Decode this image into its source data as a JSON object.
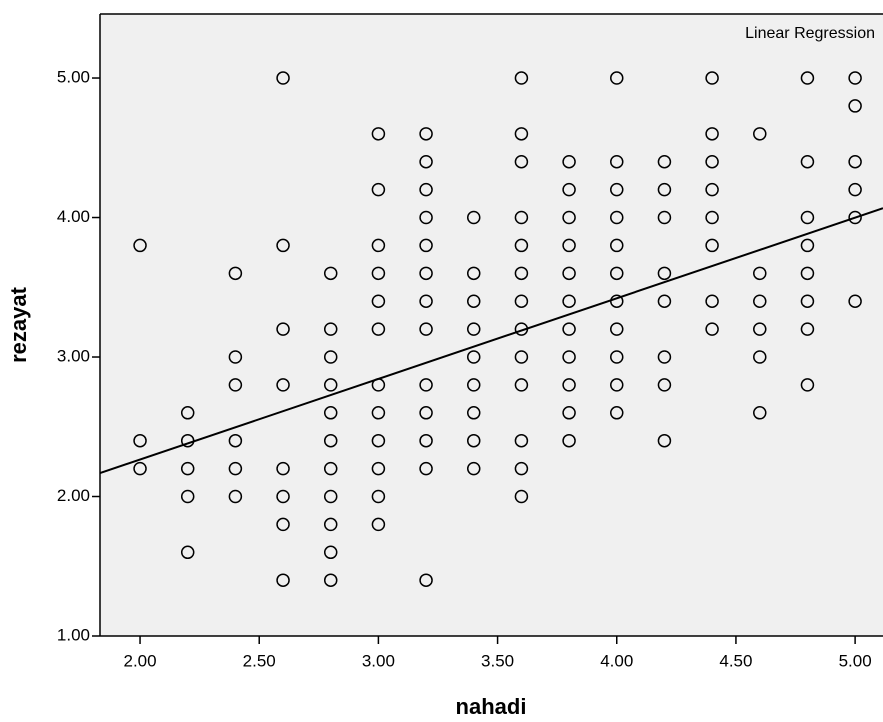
{
  "chart_data": {
    "type": "scatter",
    "x_label": "nahadi",
    "y_label": "rezayat",
    "annotation": "Linear Regression",
    "xlim": [
      1.832,
      5.117
    ],
    "ylim": [
      1.0,
      5.459
    ],
    "xticks": [
      {
        "value": 2,
        "label": "2.00"
      },
      {
        "value": 2.5,
        "label": "2.50"
      },
      {
        "value": 3,
        "label": "3.00"
      },
      {
        "value": 3.5,
        "label": "3.50"
      },
      {
        "value": 4,
        "label": "4.00"
      },
      {
        "value": 4.5,
        "label": "4.50"
      },
      {
        "value": 5,
        "label": "5.00"
      }
    ],
    "yticks": [
      {
        "value": 1,
        "label": "1.00"
      },
      {
        "value": 2,
        "label": "2.00"
      },
      {
        "value": 3,
        "label": "3.00"
      },
      {
        "value": 4,
        "label": "4.00"
      },
      {
        "value": 5,
        "label": "5.00"
      }
    ],
    "grid": false,
    "color": "#000000",
    "background": "#f0f0f0",
    "regression": {
      "intercept": 1.109,
      "slope": 0.578
    },
    "points": [
      [
        2.0,
        3.8
      ],
      [
        2.0,
        2.4
      ],
      [
        2.0,
        2.2
      ],
      [
        2.2,
        2.6
      ],
      [
        2.2,
        2.4
      ],
      [
        2.2,
        2.2
      ],
      [
        2.2,
        2.0
      ],
      [
        2.2,
        1.6
      ],
      [
        2.4,
        3.6
      ],
      [
        2.4,
        3.0
      ],
      [
        2.4,
        2.8
      ],
      [
        2.4,
        2.4
      ],
      [
        2.4,
        2.2
      ],
      [
        2.4,
        2.0
      ],
      [
        2.6,
        5.0
      ],
      [
        2.6,
        3.8
      ],
      [
        2.6,
        3.2
      ],
      [
        2.6,
        2.8
      ],
      [
        2.6,
        2.2
      ],
      [
        2.6,
        2.0
      ],
      [
        2.6,
        1.8
      ],
      [
        2.6,
        1.4
      ],
      [
        2.8,
        3.6
      ],
      [
        2.8,
        3.2
      ],
      [
        2.8,
        3.0
      ],
      [
        2.8,
        2.8
      ],
      [
        2.8,
        2.6
      ],
      [
        2.8,
        2.4
      ],
      [
        2.8,
        2.2
      ],
      [
        2.8,
        2.0
      ],
      [
        2.8,
        1.8
      ],
      [
        2.8,
        1.6
      ],
      [
        2.8,
        1.4
      ],
      [
        3.0,
        4.6
      ],
      [
        3.0,
        4.2
      ],
      [
        3.0,
        3.8
      ],
      [
        3.0,
        3.6
      ],
      [
        3.0,
        3.4
      ],
      [
        3.0,
        3.2
      ],
      [
        3.0,
        2.8
      ],
      [
        3.0,
        2.6
      ],
      [
        3.0,
        2.4
      ],
      [
        3.0,
        2.2
      ],
      [
        3.0,
        2.0
      ],
      [
        3.0,
        1.8
      ],
      [
        3.2,
        4.6
      ],
      [
        3.2,
        4.4
      ],
      [
        3.2,
        4.2
      ],
      [
        3.2,
        4.0
      ],
      [
        3.2,
        3.8
      ],
      [
        3.2,
        3.6
      ],
      [
        3.2,
        3.4
      ],
      [
        3.2,
        3.2
      ],
      [
        3.2,
        2.8
      ],
      [
        3.2,
        2.6
      ],
      [
        3.2,
        2.4
      ],
      [
        3.2,
        2.2
      ],
      [
        3.2,
        1.4
      ],
      [
        3.4,
        4.0
      ],
      [
        3.4,
        3.6
      ],
      [
        3.4,
        3.4
      ],
      [
        3.4,
        3.2
      ],
      [
        3.4,
        3.0
      ],
      [
        3.4,
        2.8
      ],
      [
        3.4,
        2.6
      ],
      [
        3.4,
        2.4
      ],
      [
        3.4,
        2.2
      ],
      [
        3.6,
        5.0
      ],
      [
        3.6,
        4.6
      ],
      [
        3.6,
        4.4
      ],
      [
        3.6,
        4.0
      ],
      [
        3.6,
        3.8
      ],
      [
        3.6,
        3.6
      ],
      [
        3.6,
        3.4
      ],
      [
        3.6,
        3.2
      ],
      [
        3.6,
        3.0
      ],
      [
        3.6,
        2.8
      ],
      [
        3.6,
        2.4
      ],
      [
        3.6,
        2.2
      ],
      [
        3.6,
        2.0
      ],
      [
        3.8,
        4.4
      ],
      [
        3.8,
        4.2
      ],
      [
        3.8,
        4.0
      ],
      [
        3.8,
        3.8
      ],
      [
        3.8,
        3.6
      ],
      [
        3.8,
        3.4
      ],
      [
        3.8,
        3.2
      ],
      [
        3.8,
        3.0
      ],
      [
        3.8,
        2.8
      ],
      [
        3.8,
        2.6
      ],
      [
        3.8,
        2.4
      ],
      [
        4.0,
        5.0
      ],
      [
        4.0,
        4.4
      ],
      [
        4.0,
        4.2
      ],
      [
        4.0,
        4.0
      ],
      [
        4.0,
        3.8
      ],
      [
        4.0,
        3.6
      ],
      [
        4.0,
        3.4
      ],
      [
        4.0,
        3.2
      ],
      [
        4.0,
        3.0
      ],
      [
        4.0,
        2.8
      ],
      [
        4.0,
        2.6
      ],
      [
        4.2,
        4.4
      ],
      [
        4.2,
        4.2
      ],
      [
        4.2,
        4.0
      ],
      [
        4.2,
        3.6
      ],
      [
        4.2,
        3.4
      ],
      [
        4.2,
        3.0
      ],
      [
        4.2,
        2.8
      ],
      [
        4.2,
        2.4
      ],
      [
        4.4,
        5.0
      ],
      [
        4.4,
        4.6
      ],
      [
        4.4,
        4.4
      ],
      [
        4.4,
        4.2
      ],
      [
        4.4,
        4.0
      ],
      [
        4.4,
        3.8
      ],
      [
        4.4,
        3.4
      ],
      [
        4.4,
        3.2
      ],
      [
        4.6,
        4.6
      ],
      [
        4.6,
        3.6
      ],
      [
        4.6,
        3.4
      ],
      [
        4.6,
        3.2
      ],
      [
        4.6,
        3.0
      ],
      [
        4.6,
        2.6
      ],
      [
        4.8,
        5.0
      ],
      [
        4.8,
        4.4
      ],
      [
        4.8,
        4.0
      ],
      [
        4.8,
        3.8
      ],
      [
        4.8,
        3.6
      ],
      [
        4.8,
        3.4
      ],
      [
        4.8,
        3.2
      ],
      [
        4.8,
        2.8
      ],
      [
        5.0,
        5.0
      ],
      [
        5.0,
        4.8
      ],
      [
        5.0,
        4.4
      ],
      [
        5.0,
        4.2
      ],
      [
        5.0,
        4.0
      ],
      [
        5.0,
        3.4
      ]
    ]
  }
}
